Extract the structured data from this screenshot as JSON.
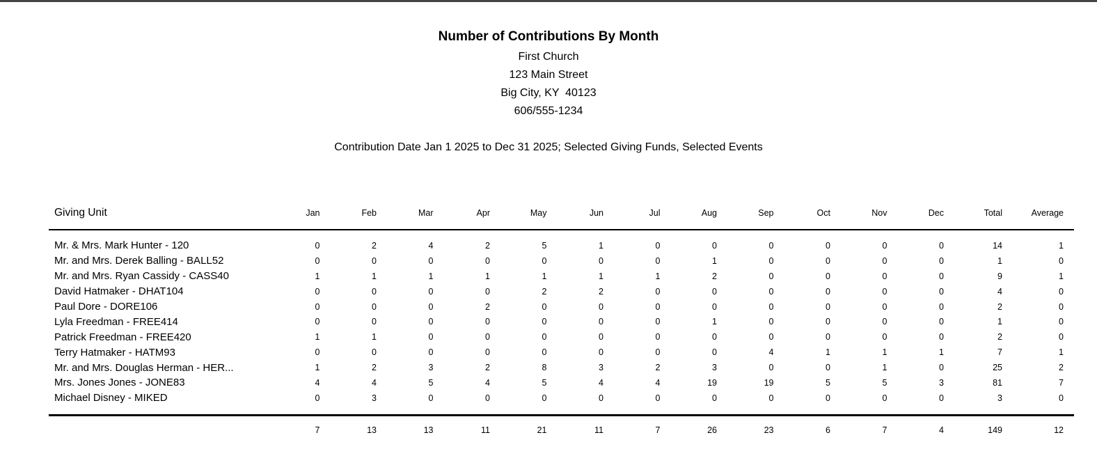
{
  "window": {
    "top_strip_color": "#454547"
  },
  "header": {
    "title": "Number of Contributions By Month",
    "org_name": "First Church",
    "address_line1": "123 Main Street",
    "address_line2": "Big City, KY  40123",
    "phone": "606/555-1234",
    "criteria": "Contribution Date Jan 1 2025 to Dec 31 2025; Selected Giving Funds, Selected Events"
  },
  "table": {
    "unit_column_header": "Giving Unit",
    "columns": [
      "Jan",
      "Feb",
      "Mar",
      "Apr",
      "May",
      "Jun",
      "Jul",
      "Aug",
      "Sep",
      "Oct",
      "Nov",
      "Dec",
      "Total",
      "Average"
    ],
    "rows": [
      {
        "unit": "Mr. & Mrs. Mark Hunter - 120",
        "values": [
          0,
          2,
          4,
          2,
          5,
          1,
          0,
          0,
          0,
          0,
          0,
          0,
          14,
          1
        ]
      },
      {
        "unit": "Mr. and Mrs. Derek Balling - BALL52",
        "values": [
          0,
          0,
          0,
          0,
          0,
          0,
          0,
          1,
          0,
          0,
          0,
          0,
          1,
          0
        ]
      },
      {
        "unit": "Mr. and Mrs. Ryan Cassidy - CASS40",
        "values": [
          1,
          1,
          1,
          1,
          1,
          1,
          1,
          2,
          0,
          0,
          0,
          0,
          9,
          1
        ]
      },
      {
        "unit": "David Hatmaker - DHAT104",
        "values": [
          0,
          0,
          0,
          0,
          2,
          2,
          0,
          0,
          0,
          0,
          0,
          0,
          4,
          0
        ]
      },
      {
        "unit": "Paul Dore - DORE106",
        "values": [
          0,
          0,
          0,
          2,
          0,
          0,
          0,
          0,
          0,
          0,
          0,
          0,
          2,
          0
        ]
      },
      {
        "unit": "Lyla Freedman - FREE414",
        "values": [
          0,
          0,
          0,
          0,
          0,
          0,
          0,
          1,
          0,
          0,
          0,
          0,
          1,
          0
        ]
      },
      {
        "unit": "Patrick Freedman - FREE420",
        "values": [
          1,
          1,
          0,
          0,
          0,
          0,
          0,
          0,
          0,
          0,
          0,
          0,
          2,
          0
        ]
      },
      {
        "unit": "Terry Hatmaker - HATM93",
        "values": [
          0,
          0,
          0,
          0,
          0,
          0,
          0,
          0,
          4,
          1,
          1,
          1,
          7,
          1
        ]
      },
      {
        "unit": "Mr. and Mrs. Douglas Herman - HER...",
        "values": [
          1,
          2,
          3,
          2,
          8,
          3,
          2,
          3,
          0,
          0,
          1,
          0,
          25,
          2
        ]
      },
      {
        "unit": "Mrs. Jones Jones - JONE83",
        "values": [
          4,
          4,
          5,
          4,
          5,
          4,
          4,
          19,
          19,
          5,
          5,
          3,
          81,
          7
        ]
      },
      {
        "unit": "Michael Disney - MIKED",
        "values": [
          0,
          3,
          0,
          0,
          0,
          0,
          0,
          0,
          0,
          0,
          0,
          0,
          3,
          0
        ]
      }
    ],
    "totals": [
      7,
      13,
      13,
      11,
      21,
      11,
      7,
      26,
      23,
      6,
      7,
      4,
      149,
      12
    ]
  }
}
